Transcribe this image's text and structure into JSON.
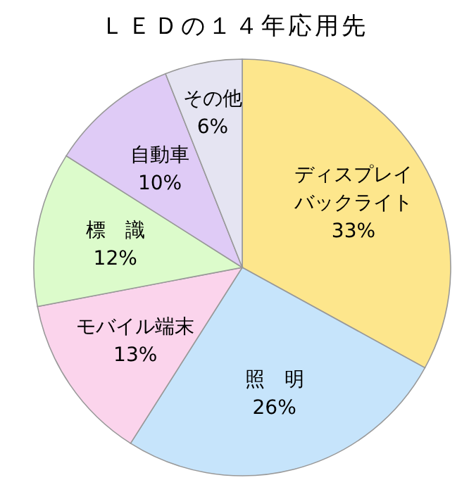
{
  "chart_data": {
    "type": "pie",
    "title": "ＬＥＤの１４年応用先",
    "categories": [
      "ディスプレイバックライト",
      "照　明",
      "モバイル端末",
      "標　識",
      "自動車",
      "その他"
    ],
    "values": [
      33,
      26,
      13,
      12,
      10,
      6
    ],
    "value_labels": [
      "33%",
      "26%",
      "13%",
      "12%",
      "10%",
      "6%"
    ],
    "colors": [
      "#fde68c",
      "#c6e4fb",
      "#fbd4ec",
      "#dcfbcb",
      "#dfcbf6",
      "#e5e4f2"
    ]
  }
}
